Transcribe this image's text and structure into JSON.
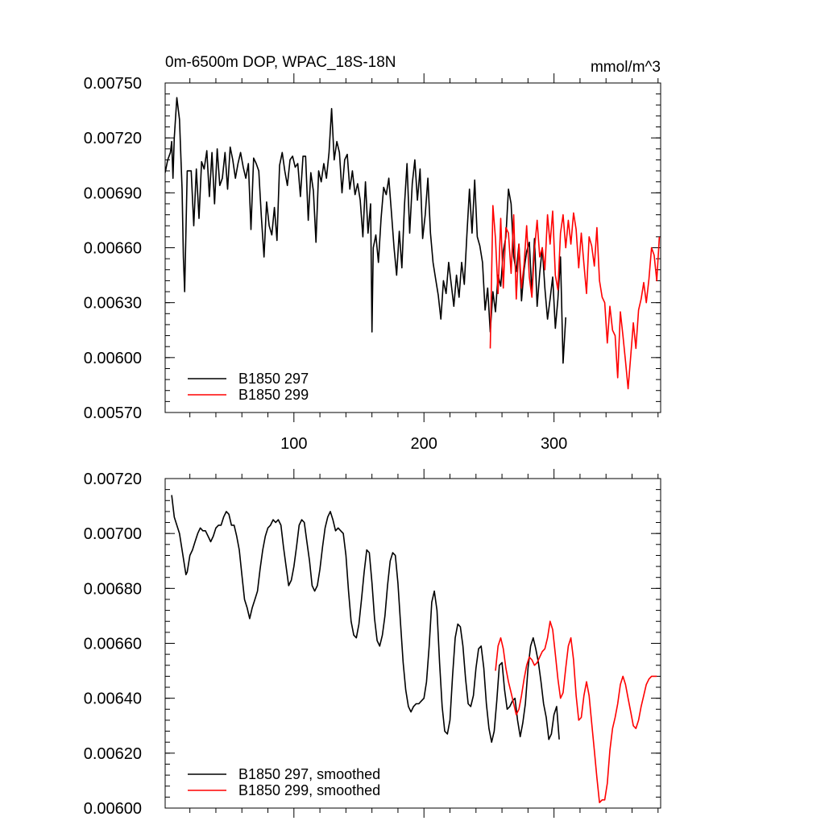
{
  "chart_data": [
    {
      "type": "line",
      "title": "0m-6500m DOP, WPAC_18S-18N",
      "units": "mmol/m^3",
      "xlabel": "",
      "ylabel": "",
      "xlim": [
        1,
        382
      ],
      "ylim": [
        0.0057,
        0.0075
      ],
      "x_ticks": [
        100,
        200,
        300
      ],
      "x_tick_labels": [
        "100",
        "200",
        "300"
      ],
      "y_ticks": [
        0.0057,
        0.006,
        0.0063,
        0.0066,
        0.0069,
        0.0072,
        0.0075
      ],
      "y_tick_labels": [
        "0.00570",
        "0.00600",
        "0.00630",
        "0.00660",
        "0.00690",
        "0.00720",
        "0.00750"
      ],
      "grid": false,
      "legend_position": "bottom-left",
      "series": [
        {
          "name": "B1850 297",
          "color": "#000000",
          "x": [
            1,
            3,
            5,
            6,
            7,
            8,
            10,
            12,
            14,
            15,
            16,
            18,
            21,
            23,
            25,
            27,
            29,
            31,
            33,
            35,
            37,
            39,
            41,
            43,
            45,
            47,
            49,
            51,
            53,
            55,
            57,
            59,
            61,
            63,
            65,
            67,
            69,
            71,
            73,
            75,
            77,
            79,
            81,
            83,
            85,
            87,
            89,
            91,
            93,
            95,
            97,
            99,
            101,
            103,
            105,
            107,
            109,
            111,
            113,
            115,
            117,
            119,
            121,
            123,
            125,
            127,
            129,
            131,
            133,
            135,
            137,
            139,
            141,
            143,
            145,
            147,
            149,
            151,
            153,
            155,
            157,
            159,
            160,
            161,
            163,
            165,
            167,
            169,
            171,
            173,
            175,
            177,
            179,
            181,
            183,
            185,
            187,
            189,
            191,
            193,
            195,
            197,
            199,
            201,
            203,
            205,
            207,
            209,
            211,
            213,
            215,
            217,
            219,
            221,
            223,
            225,
            227,
            229,
            231,
            233,
            235,
            237,
            239,
            241,
            243,
            245,
            247,
            249,
            251,
            253,
            255,
            257,
            259,
            261,
            263,
            265,
            267,
            269,
            271,
            273,
            275,
            277,
            279,
            281,
            283,
            285,
            287,
            289,
            291,
            293,
            295,
            297,
            299,
            301,
            303,
            305,
            307,
            309
          ],
          "values": [
            0.00701,
            0.00708,
            0.00712,
            0.00718,
            0.00698,
            0.0072,
            0.00742,
            0.0073,
            0.00692,
            0.00655,
            0.00636,
            0.00702,
            0.00702,
            0.00672,
            0.00703,
            0.00676,
            0.00707,
            0.00703,
            0.00713,
            0.00688,
            0.00712,
            0.00684,
            0.00714,
            0.00694,
            0.00698,
            0.00712,
            0.00692,
            0.00715,
            0.00708,
            0.00698,
            0.00706,
            0.00712,
            0.00704,
            0.00698,
            0.00706,
            0.0067,
            0.00709,
            0.00706,
            0.00702,
            0.00677,
            0.00655,
            0.00685,
            0.00672,
            0.00667,
            0.00682,
            0.00664,
            0.00705,
            0.00712,
            0.00702,
            0.00694,
            0.00708,
            0.0071,
            0.00704,
            0.00706,
            0.00688,
            0.0071,
            0.0071,
            0.00675,
            0.00701,
            0.00691,
            0.00663,
            0.00702,
            0.00696,
            0.00706,
            0.00698,
            0.00712,
            0.00736,
            0.00708,
            0.00718,
            0.00712,
            0.0069,
            0.00708,
            0.00711,
            0.00692,
            0.00702,
            0.00689,
            0.00695,
            0.00686,
            0.00666,
            0.00696,
            0.00668,
            0.00684,
            0.00614,
            0.0066,
            0.00667,
            0.00652,
            0.00676,
            0.00693,
            0.00689,
            0.00698,
            0.00679,
            0.0066,
            0.00645,
            0.00669,
            0.00649,
            0.00683,
            0.00706,
            0.00668,
            0.00695,
            0.00708,
            0.00686,
            0.00703,
            0.00665,
            0.00678,
            0.00698,
            0.00668,
            0.00652,
            0.00643,
            0.00634,
            0.00621,
            0.00642,
            0.00635,
            0.00652,
            0.0064,
            0.00628,
            0.00645,
            0.00633,
            0.00652,
            0.0064,
            0.00667,
            0.00692,
            0.00668,
            0.00697,
            0.00666,
            0.00661,
            0.00652,
            0.00626,
            0.00638,
            0.00614,
            0.00636,
            0.00625,
            0.00645,
            0.00639,
            0.00658,
            0.00666,
            0.00692,
            0.00684,
            0.00655,
            0.00647,
            0.00662,
            0.00631,
            0.00648,
            0.00658,
            0.00663,
            0.00635,
            0.00665,
            0.00628,
            0.00646,
            0.0066,
            0.00638,
            0.00621,
            0.00632,
            0.00644,
            0.00616,
            0.00632,
            0.00655,
            0.00597,
            0.00622
          ]
        },
        {
          "name": "B1850 299",
          "color": "#ff0000",
          "x": [
            251,
            253,
            255,
            257,
            259,
            261,
            263,
            265,
            267,
            269,
            271,
            273,
            275,
            277,
            279,
            281,
            283,
            285,
            287,
            289,
            291,
            293,
            295,
            297,
            299,
            301,
            303,
            305,
            307,
            309,
            311,
            313,
            315,
            317,
            319,
            321,
            323,
            325,
            327,
            329,
            331,
            333,
            335,
            337,
            339,
            341,
            343,
            345,
            347,
            349,
            351,
            353,
            355,
            357,
            359,
            361,
            363,
            365,
            367,
            369,
            371,
            373,
            375,
            377,
            379,
            381
          ],
          "values": [
            0.00605,
            0.00683,
            0.00665,
            0.00635,
            0.00676,
            0.00638,
            0.00671,
            0.00668,
            0.00646,
            0.00678,
            0.00632,
            0.00662,
            0.00638,
            0.00651,
            0.00672,
            0.00644,
            0.00633,
            0.00659,
            0.00675,
            0.00655,
            0.0066,
            0.00648,
            0.00678,
            0.00662,
            0.0068,
            0.00645,
            0.00637,
            0.00668,
            0.00678,
            0.0066,
            0.00675,
            0.00662,
            0.00679,
            0.0067,
            0.00649,
            0.00668,
            0.00651,
            0.00635,
            0.00666,
            0.00661,
            0.0065,
            0.00671,
            0.00642,
            0.00633,
            0.0063,
            0.00608,
            0.00628,
            0.00615,
            0.00612,
            0.00589,
            0.00625,
            0.00612,
            0.00598,
            0.00583,
            0.00601,
            0.00619,
            0.00605,
            0.00626,
            0.00632,
            0.00641,
            0.0063,
            0.00643,
            0.0066,
            0.00656,
            0.00642,
            0.00666
          ]
        }
      ]
    },
    {
      "type": "line",
      "title": "",
      "xlabel": "",
      "ylabel": "",
      "xlim": [
        1,
        382
      ],
      "ylim": [
        0.006,
        0.0072
      ],
      "x_ticks": [
        100,
        200,
        300
      ],
      "x_tick_labels": [],
      "y_ticks": [
        0.006,
        0.0062,
        0.0064,
        0.0066,
        0.0068,
        0.007,
        0.0072
      ],
      "y_tick_labels": [
        "0.00600",
        "0.00620",
        "0.00640",
        "0.00660",
        "0.00680",
        "0.00700",
        "0.00720"
      ],
      "grid": false,
      "legend_position": "bottom-left",
      "series": [
        {
          "name": "B1850 297, smoothed",
          "color": "#000000",
          "x": [
            6,
            8,
            10,
            12,
            14,
            16,
            17,
            18,
            20,
            22,
            24,
            26,
            28,
            30,
            32,
            34,
            36,
            38,
            40,
            42,
            44,
            46,
            48,
            50,
            52,
            54,
            56,
            58,
            60,
            62,
            64,
            66,
            68,
            70,
            72,
            74,
            76,
            78,
            80,
            82,
            84,
            86,
            88,
            90,
            92,
            94,
            96,
            98,
            100,
            102,
            104,
            106,
            108,
            110,
            112,
            114,
            116,
            118,
            120,
            122,
            124,
            126,
            128,
            130,
            132,
            134,
            136,
            138,
            140,
            142,
            144,
            146,
            148,
            150,
            152,
            154,
            156,
            158,
            160,
            162,
            164,
            166,
            168,
            170,
            172,
            174,
            176,
            178,
            180,
            182,
            184,
            186,
            188,
            190,
            192,
            194,
            196,
            198,
            200,
            202,
            204,
            206,
            208,
            210,
            212,
            214,
            216,
            218,
            220,
            222,
            224,
            226,
            228,
            230,
            232,
            234,
            236,
            238,
            240,
            242,
            244,
            246,
            248,
            250,
            252,
            254,
            256,
            258,
            260,
            262,
            264,
            266,
            268,
            270,
            272,
            274,
            276,
            278,
            280,
            282,
            284,
            286,
            288,
            290,
            292,
            294,
            296,
            298,
            300,
            302,
            304
          ],
          "values": [
            0.00714,
            0.00706,
            0.00703,
            0.007,
            0.00694,
            0.00688,
            0.00685,
            0.00686,
            0.00692,
            0.00694,
            0.00697,
            0.007,
            0.00702,
            0.00701,
            0.00701,
            0.00699,
            0.00697,
            0.00699,
            0.00702,
            0.00703,
            0.00703,
            0.00706,
            0.00708,
            0.00707,
            0.00703,
            0.00703,
            0.00699,
            0.00694,
            0.00685,
            0.00676,
            0.00673,
            0.00669,
            0.00673,
            0.00676,
            0.00679,
            0.00687,
            0.00694,
            0.00699,
            0.00702,
            0.00703,
            0.00705,
            0.00704,
            0.00705,
            0.00703,
            0.00695,
            0.00688,
            0.00681,
            0.00683,
            0.00688,
            0.00695,
            0.00703,
            0.00705,
            0.00704,
            0.00697,
            0.0069,
            0.00681,
            0.00679,
            0.00681,
            0.00687,
            0.00695,
            0.00702,
            0.00706,
            0.00708,
            0.00705,
            0.00701,
            0.00702,
            0.00701,
            0.007,
            0.00692,
            0.00679,
            0.00668,
            0.00663,
            0.00662,
            0.00667,
            0.00676,
            0.00686,
            0.00694,
            0.00693,
            0.00682,
            0.00669,
            0.00661,
            0.00659,
            0.00663,
            0.0067,
            0.00681,
            0.0069,
            0.00693,
            0.00692,
            0.00682,
            0.00667,
            0.00653,
            0.00643,
            0.00637,
            0.00635,
            0.00637,
            0.00638,
            0.00638,
            0.00639,
            0.0064,
            0.00646,
            0.00659,
            0.00675,
            0.00679,
            0.00672,
            0.00653,
            0.00637,
            0.00628,
            0.00627,
            0.00632,
            0.00648,
            0.00662,
            0.00667,
            0.00666,
            0.00659,
            0.00647,
            0.00638,
            0.00637,
            0.00641,
            0.00651,
            0.00658,
            0.00659,
            0.00651,
            0.00638,
            0.00629,
            0.00624,
            0.00628,
            0.00639,
            0.00652,
            0.00653,
            0.00643,
            0.00636,
            0.00637,
            0.00639,
            0.0064,
            0.00632,
            0.00626,
            0.00631,
            0.00638,
            0.00651,
            0.00659,
            0.00662,
            0.00658,
            0.00653,
            0.00646,
            0.00638,
            0.00633,
            0.00625,
            0.00627,
            0.00634,
            0.00637,
            0.00625
          ]
        },
        {
          "name": "B1850 299, smoothed",
          "color": "#ff0000",
          "x": [
            255,
            257,
            259,
            261,
            263,
            265,
            267,
            269,
            271,
            273,
            275,
            277,
            279,
            281,
            283,
            285,
            287,
            289,
            291,
            293,
            295,
            297,
            299,
            301,
            303,
            305,
            307,
            309,
            311,
            313,
            315,
            317,
            319,
            321,
            323,
            325,
            327,
            329,
            331,
            333,
            335,
            337,
            339,
            341,
            343,
            345,
            347,
            349,
            351,
            353,
            355,
            357,
            359,
            361,
            363,
            365,
            367,
            369,
            371,
            373,
            375,
            377,
            379
          ],
          "values": [
            0.0065,
            0.00659,
            0.00662,
            0.00658,
            0.00651,
            0.00646,
            0.00642,
            0.00638,
            0.00634,
            0.00636,
            0.00641,
            0.00647,
            0.00652,
            0.00655,
            0.00654,
            0.00652,
            0.00653,
            0.00655,
            0.00657,
            0.00658,
            0.00662,
            0.00668,
            0.00665,
            0.00656,
            0.00647,
            0.0064,
            0.00642,
            0.00651,
            0.00659,
            0.00662,
            0.00654,
            0.00641,
            0.00632,
            0.00633,
            0.00641,
            0.00646,
            0.00641,
            0.00631,
            0.00621,
            0.00611,
            0.00602,
            0.00603,
            0.00603,
            0.00609,
            0.00621,
            0.00629,
            0.00633,
            0.00638,
            0.00645,
            0.00648,
            0.00645,
            0.0064,
            0.00635,
            0.0063,
            0.00629,
            0.00632,
            0.00637,
            0.00641,
            0.00645,
            0.00647,
            0.00648,
            0.00648,
            0.00648
          ]
        }
      ]
    }
  ]
}
